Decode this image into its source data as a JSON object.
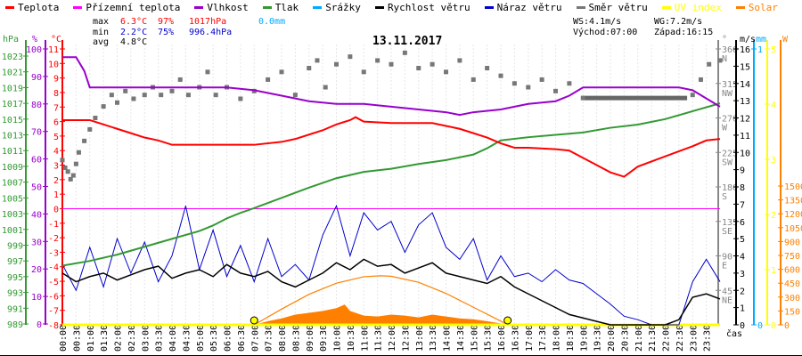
{
  "chart_data": {
    "type": "line",
    "title": "13.11.2017",
    "legend": [
      {
        "name": "Teplota",
        "color": "#ff0000"
      },
      {
        "name": "Přízemní teplota",
        "color": "#ff00ff"
      },
      {
        "name": "Vlhkost",
        "color": "#9900cc"
      },
      {
        "name": "Tlak",
        "color": "#339933"
      },
      {
        "name": "Srážky",
        "color": "#00aaff"
      },
      {
        "name": "Rychlost větru",
        "color": "#000000"
      },
      {
        "name": "Náraz větru",
        "color": "#0000cc"
      },
      {
        "name": "Směr větru",
        "color": "#777777"
      },
      {
        "name": "UV index",
        "color": "#ffff00"
      },
      {
        "name": "Solar",
        "color": "#ff8000"
      }
    ],
    "stats": {
      "max_label": "max",
      "max_temp": "6.3°C",
      "max_hum": "97%",
      "max_press": "1017hPa",
      "rain": "0.0mm",
      "min_label": "min",
      "min_temp": "2.2°C",
      "min_hum": "75%",
      "min_press": "996.4hPa",
      "avg_label": "avg",
      "avg_temp": "4.8°C",
      "ws": "WS:4.1m/s",
      "wg": "WG:7.2m/s",
      "sunrise": "Východ:07:00",
      "sunset": "Západ:16:15"
    },
    "xlabel": "čas",
    "x_ticks": [
      "00:00",
      "00:30",
      "01:00",
      "01:30",
      "02:00",
      "02:30",
      "03:00",
      "03:30",
      "04:00",
      "04:30",
      "05:00",
      "05:30",
      "06:00",
      "06:30",
      "07:00",
      "07:30",
      "08:00",
      "08:30",
      "09:00",
      "09:30",
      "10:00",
      "10:30",
      "11:00",
      "11:30",
      "12:00",
      "12:30",
      "13:00",
      "13:30",
      "14:00",
      "14:30",
      "15:00",
      "15:30",
      "16:00",
      "16:30",
      "17:00",
      "17:30",
      "18:00",
      "18:30",
      "19:00",
      "19:30",
      "20:00",
      "20:30",
      "21:00",
      "21:30",
      "22:00",
      "22:30",
      "23:00",
      "23:30"
    ],
    "axes": {
      "pressure": {
        "unit": "hPa",
        "range": [
          989,
          1023
        ],
        "ticks": [
          989,
          991,
          993,
          995,
          997,
          999,
          1001,
          1003,
          1005,
          1007,
          1009,
          1011,
          1013,
          1015,
          1017,
          1019,
          1021,
          1023
        ]
      },
      "humidity": {
        "unit": "%",
        "range": [
          0,
          100
        ],
        "ticks": [
          0,
          10,
          20,
          30,
          40,
          50,
          60,
          70,
          80,
          90,
          100
        ]
      },
      "temperature": {
        "unit": "°C",
        "range": [
          -8,
          11
        ],
        "ticks": [
          -8,
          -7,
          -6,
          -5,
          -4,
          -3,
          -2,
          -1,
          0,
          1,
          2,
          3,
          4,
          5,
          6,
          7,
          8,
          9,
          10,
          11
        ]
      },
      "direction": {
        "unit": "°",
        "range": [
          0,
          360
        ],
        "ticks": [
          {
            "v": 45,
            "d": "NE"
          },
          {
            "v": 90,
            "d": "E"
          },
          {
            "v": 135,
            "d": "SE"
          },
          {
            "v": 180,
            "d": "S"
          },
          {
            "v": 225,
            "d": "SW"
          },
          {
            "v": 270,
            "d": "W"
          },
          {
            "v": 315,
            "d": "NW"
          },
          {
            "v": 360,
            "d": "N"
          }
        ]
      },
      "wind": {
        "unit": "m/s",
        "range": [
          0,
          16
        ],
        "ticks": [
          0,
          1,
          2,
          3,
          4,
          5,
          6,
          7,
          8,
          9,
          10,
          11,
          12,
          13,
          14,
          15,
          16
        ]
      },
      "rain": {
        "unit": "mm",
        "range": [
          0,
          1
        ],
        "ticks": [
          0,
          1
        ]
      },
      "uv": {
        "unit": "",
        "range": [
          0,
          5
        ],
        "ticks": [
          0,
          1,
          2,
          3,
          4,
          5
        ]
      },
      "solar": {
        "unit": "W",
        "range": [
          0,
          1500
        ],
        "ticks": [
          0,
          150,
          300,
          450,
          600,
          750,
          900,
          1050,
          1200,
          1350,
          1500
        ]
      }
    },
    "series": {
      "temperature": {
        "x": [
          0,
          0.5,
          1,
          1.5,
          2,
          2.5,
          3,
          3.5,
          4,
          5,
          6,
          7,
          8,
          8.5,
          9,
          9.5,
          10,
          10.5,
          10.7,
          11,
          12,
          13,
          13.5,
          14,
          14.5,
          15,
          15.5,
          16,
          16.5,
          17,
          18,
          18.5,
          19,
          19.5,
          20,
          20.5,
          21,
          22,
          23,
          23.5,
          24
        ],
        "y": [
          6.1,
          6.1,
          6.1,
          5.8,
          5.5,
          5.2,
          4.9,
          4.7,
          4.4,
          4.4,
          4.4,
          4.4,
          4.6,
          4.8,
          5.1,
          5.4,
          5.8,
          6.1,
          6.3,
          6.0,
          5.9,
          5.9,
          5.9,
          5.7,
          5.5,
          5.2,
          4.9,
          4.5,
          4.2,
          4.2,
          4.1,
          4.0,
          3.5,
          3.0,
          2.5,
          2.2,
          2.9,
          3.6,
          4.3,
          4.7,
          4.8
        ]
      },
      "ground_temperature": {
        "x": [
          0,
          24
        ],
        "y": [
          0,
          0
        ]
      },
      "humidity": {
        "x": [
          0,
          0.5,
          0.8,
          1,
          2,
          3,
          4,
          5,
          6,
          7,
          8,
          9,
          10,
          11,
          12,
          13,
          14,
          14.5,
          15,
          16,
          17,
          18,
          18.5,
          19,
          20,
          21,
          22,
          22.5,
          23,
          23.5,
          24
        ],
        "y": [
          97,
          97,
          92,
          86,
          86,
          86,
          86,
          86,
          86,
          85,
          83,
          81,
          80,
          80,
          79,
          78,
          77,
          76,
          77,
          78,
          80,
          81,
          83,
          86,
          86,
          86,
          86,
          86,
          85,
          82,
          79
        ]
      },
      "pressure": {
        "x": [
          0,
          1,
          2,
          3,
          4,
          5,
          5.5,
          6,
          6.5,
          7,
          8,
          9,
          10,
          11,
          12,
          13,
          14,
          15,
          15.5,
          16,
          17,
          18,
          19,
          20,
          21,
          22,
          23,
          24
        ],
        "y": [
          996.4,
          997,
          997.8,
          998.8,
          999.8,
          1000.8,
          1001.5,
          1002.4,
          1003.1,
          1003.7,
          1005,
          1006.3,
          1007.5,
          1008.3,
          1008.7,
          1009.3,
          1009.8,
          1010.5,
          1011.3,
          1012.3,
          1012.7,
          1013,
          1013.3,
          1013.9,
          1014.3,
          1015,
          1016,
          1017
        ]
      },
      "wind_speed": {
        "x_step": 0.5,
        "y": [
          3.0,
          2.5,
          2.8,
          3.0,
          2.6,
          2.9,
          3.2,
          3.4,
          2.7,
          3.0,
          3.2,
          2.8,
          3.5,
          3.0,
          2.8,
          3.1,
          2.5,
          2.2,
          2.6,
          3.0,
          3.6,
          3.2,
          3.8,
          3.4,
          3.5,
          3.0,
          3.3,
          3.6,
          3.0,
          2.8,
          2.6,
          2.4,
          2.8,
          2.2,
          1.8,
          1.4,
          1.0,
          0.6,
          0.4,
          0.2,
          0,
          0,
          0,
          0,
          0,
          0.3,
          1.6,
          1.8,
          1.5
        ]
      },
      "wind_gust": {
        "x_step": 0.5,
        "y": [
          3.5,
          2.0,
          4.5,
          2.2,
          5.0,
          3.0,
          4.8,
          2.5,
          4.0,
          6.9,
          3.2,
          5.5,
          2.8,
          4.6,
          2.5,
          5.0,
          2.8,
          3.5,
          2.6,
          5.2,
          6.9,
          4.0,
          6.5,
          5.5,
          6.0,
          4.2,
          5.8,
          6.5,
          4.5,
          3.8,
          5.0,
          2.6,
          4.0,
          2.8,
          3.0,
          2.5,
          3.2,
          2.6,
          2.4,
          1.8,
          1.2,
          0.5,
          0.3,
          0,
          0,
          0,
          2.5,
          3.8,
          2.5
        ]
      },
      "wind_direction": {
        "x": [
          0,
          0.1,
          0.2,
          0.3,
          0.4,
          0.5,
          0.6,
          0.8,
          1,
          1.2,
          1.5,
          1.8,
          2,
          2.3,
          2.6,
          3,
          3.3,
          3.6,
          4,
          4.3,
          4.6,
          5,
          5.3,
          5.6,
          6,
          6.5,
          7,
          7.5,
          8,
          8.5,
          9,
          9.3,
          9.6,
          10,
          10.5,
          11,
          11.5,
          12,
          12.5,
          13,
          13.5,
          14,
          14.5,
          15,
          15.5,
          16,
          16.5,
          17,
          17.5,
          18,
          18.5,
          19,
          23,
          23.3,
          23.6,
          24
        ],
        "y": [
          215,
          205,
          200,
          190,
          195,
          210,
          225,
          240,
          255,
          270,
          285,
          300,
          290,
          305,
          295,
          300,
          310,
          300,
          305,
          320,
          300,
          310,
          330,
          300,
          310,
          295,
          305,
          320,
          330,
          300,
          335,
          345,
          310,
          340,
          350,
          330,
          345,
          340,
          355,
          335,
          340,
          330,
          345,
          320,
          335,
          325,
          315,
          310,
          320,
          305,
          315,
          296,
          300,
          320,
          340,
          345
        ]
      },
      "wind_direction_steady": {
        "x": [
          19,
          22.8
        ],
        "y": [
          296,
          296
        ]
      },
      "solar": {
        "x": [
          7,
          7.5,
          8,
          8.5,
          9,
          9.5,
          10,
          10.3,
          10.5,
          11,
          11.5,
          12,
          12.5,
          13,
          13.5,
          14,
          14.5,
          15,
          15.5,
          16,
          16.25
        ],
        "y": [
          0,
          40,
          70,
          110,
          130,
          150,
          180,
          220,
          150,
          100,
          90,
          110,
          100,
          80,
          110,
          90,
          70,
          60,
          40,
          15,
          0
        ]
      },
      "solar_theoretical": {
        "x": [
          7,
          8,
          9,
          10,
          11,
          11.6,
          12,
          13,
          14,
          15,
          16,
          16.25
        ],
        "y": [
          0,
          170,
          330,
          450,
          520,
          530,
          525,
          460,
          340,
          190,
          40,
          0
        ]
      },
      "rain": {
        "x": [
          0,
          24
        ],
        "y": [
          0,
          0
        ]
      },
      "uv": {
        "x": [
          0,
          24
        ],
        "y": [
          0,
          0
        ]
      },
      "sun_markers": [
        7,
        16.25
      ]
    }
  }
}
